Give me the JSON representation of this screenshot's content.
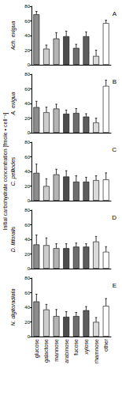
{
  "ylabel": "Initial carbohydrate concentration [fmole • cell⁻¹]",
  "chart_data": [
    {
      "type": "bar",
      "title": "Ach. exigua",
      "annotation": "A",
      "categories": [
        "glucose",
        "galactose",
        "mannose",
        "arabinose",
        "fucose",
        "xylose",
        "rhamnose",
        "other"
      ],
      "values": [
        69,
        22,
        36,
        39,
        23,
        39,
        12,
        57
      ],
      "errors": [
        4,
        5,
        8,
        7,
        5,
        6,
        8,
        4
      ],
      "colors": [
        "#8c8c8c",
        "#cdcdcd",
        "#b4b4b4",
        "#4d4d4d",
        "#6e6e6e",
        "#5e5e5e",
        "#dadada",
        "#ffffff"
      ],
      "ylim": [
        0,
        80
      ],
      "yticks": [
        0,
        20,
        40,
        60,
        80
      ],
      "grid": false,
      "tick_labels": "y"
    },
    {
      "type": "bar",
      "title": "A. exigua",
      "annotation": "B",
      "categories": [
        "glucose",
        "galactose",
        "mannose",
        "arabinose",
        "fucose",
        "xylose",
        "rhamnose",
        "other"
      ],
      "values": [
        35,
        28,
        33,
        26,
        27,
        22,
        14,
        64
      ],
      "errors": [
        8,
        7,
        6,
        5,
        6,
        4,
        6,
        8
      ],
      "colors": [
        "#8c8c8c",
        "#cdcdcd",
        "#b4b4b4",
        "#4d4d4d",
        "#6e6e6e",
        "#5e5e5e",
        "#dadada",
        "#ffffff"
      ],
      "ylim": [
        0,
        80
      ],
      "yticks": [
        0,
        20,
        40,
        60,
        80
      ],
      "grid": false,
      "tick_labels": "y"
    },
    {
      "type": "bar",
      "title": "C. pelliodes",
      "annotation": "C",
      "categories": [
        "glucose",
        "galactose",
        "mannose",
        "arabinose",
        "fucose",
        "xylose",
        "rhamnose",
        "other"
      ],
      "values": [
        38,
        20,
        36,
        33,
        26,
        26,
        28,
        29
      ],
      "errors": [
        12,
        10,
        7,
        8,
        8,
        6,
        6,
        9
      ],
      "colors": [
        "#8c8c8c",
        "#cdcdcd",
        "#b4b4b4",
        "#4d4d4d",
        "#6e6e6e",
        "#5e5e5e",
        "#dadada",
        "#ffffff"
      ],
      "ylim": [
        0,
        80
      ],
      "yticks": [
        0,
        20,
        40,
        60,
        80
      ],
      "grid": false,
      "tick_labels": "y"
    },
    {
      "type": "bar",
      "title": "D. littoralis",
      "annotation": "D",
      "categories": [
        "glucose",
        "galactose",
        "mannose",
        "arabinose",
        "fucose",
        "xylose",
        "rhamnose",
        "other"
      ],
      "values": [
        33,
        32,
        28,
        28,
        30,
        30,
        37,
        23
      ],
      "errors": [
        13,
        10,
        6,
        6,
        5,
        4,
        7,
        7
      ],
      "colors": [
        "#8c8c8c",
        "#cdcdcd",
        "#b4b4b4",
        "#4d4d4d",
        "#6e6e6e",
        "#5e5e5e",
        "#dadada",
        "#ffffff"
      ],
      "ylim": [
        0,
        80
      ],
      "yticks": [
        0,
        20,
        40,
        60,
        80
      ],
      "grid": false,
      "tick_labels": "y"
    },
    {
      "type": "bar",
      "title": "N. digitoradiata",
      "annotation": "E",
      "categories": [
        "glucose",
        "galactose",
        "mannose",
        "arabinose",
        "fucose",
        "xylose",
        "rhamnose",
        "other"
      ],
      "values": [
        48,
        37,
        28,
        27,
        28,
        36,
        20,
        42
      ],
      "errors": [
        10,
        7,
        9,
        7,
        5,
        5,
        6,
        10
      ],
      "colors": [
        "#8c8c8c",
        "#cdcdcd",
        "#b4b4b4",
        "#4d4d4d",
        "#6e6e6e",
        "#5e5e5e",
        "#dadada",
        "#ffffff"
      ],
      "ylim": [
        0,
        80
      ],
      "yticks": [
        0,
        20,
        40,
        60,
        80
      ],
      "grid": false
    }
  ]
}
